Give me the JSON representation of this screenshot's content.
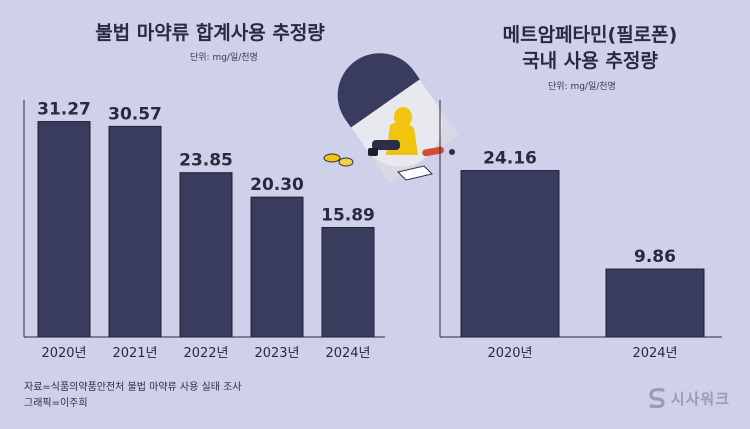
{
  "left": {
    "title": "불법 마약류 합계사용 추정량",
    "unit": "단위: mg/일/천명"
  },
  "right": {
    "title_line1": "메트암페타민(필로폰)",
    "title_line2": "국내 사용 추정량",
    "unit": "단위: mg/일/천명"
  },
  "notes": {
    "source": "자료=식품의약품안전처 불법 마약류 사용 실태 조사",
    "graphic": "그래픽=이주희"
  },
  "logo": {
    "text": "시사워크"
  },
  "colors": {
    "background": "#cfd0ea",
    "bar": "#3a3c5e",
    "axis": "#2a2a3e"
  },
  "chart_data": [
    {
      "type": "bar",
      "title": "불법 마약류 합계사용 추정량",
      "unit": "단위: mg/일/천명",
      "categories": [
        "2020년",
        "2021년",
        "2022년",
        "2023년",
        "2024년"
      ],
      "values": [
        31.27,
        30.57,
        23.85,
        20.3,
        15.89
      ],
      "value_labels": [
        "31.27",
        "30.57",
        "23.85",
        "20.30",
        "15.89"
      ],
      "ylim": [
        0,
        36
      ]
    },
    {
      "type": "bar",
      "title": "메트암페타민(필로폰) 국내 사용 추정량",
      "unit": "단위: mg/일/천명",
      "categories": [
        "2020년",
        "2024년"
      ],
      "values": [
        24.16,
        9.86
      ],
      "value_labels": [
        "24.16",
        "9.86"
      ],
      "ylim": [
        0,
        36
      ]
    }
  ]
}
